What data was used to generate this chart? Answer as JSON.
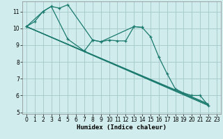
{
  "bg_color": "#d0ecec",
  "grid_color": "#aacccc",
  "line_color": "#1a7a6e",
  "xlabel": "Humidex (Indice chaleur)",
  "xlim": [
    -0.5,
    23.5
  ],
  "ylim": [
    4.9,
    11.6
  ],
  "yticks": [
    5,
    6,
    7,
    8,
    9,
    10,
    11
  ],
  "xticks": [
    0,
    1,
    2,
    3,
    4,
    5,
    6,
    7,
    8,
    9,
    10,
    11,
    12,
    13,
    14,
    15,
    16,
    17,
    18,
    19,
    20,
    21,
    22,
    23
  ],
  "curve_wiggly": {
    "x": [
      0,
      1,
      2,
      3,
      5,
      7,
      8,
      9,
      10,
      11,
      12,
      13,
      14,
      15,
      16,
      17,
      18,
      19,
      20,
      21,
      22
    ],
    "y": [
      10.1,
      10.4,
      11.0,
      11.3,
      9.35,
      8.65,
      9.3,
      9.2,
      9.3,
      9.25,
      9.25,
      10.1,
      10.05,
      9.5,
      8.3,
      7.3,
      6.4,
      6.15,
      6.0,
      6.0,
      5.4
    ]
  },
  "curve_peak": {
    "x": [
      0,
      2,
      3,
      4,
      5,
      8,
      9,
      13,
      14
    ],
    "y": [
      10.1,
      11.0,
      11.3,
      11.2,
      11.4,
      9.3,
      9.2,
      10.1,
      10.05
    ]
  },
  "line1": {
    "x": [
      0,
      22
    ],
    "y": [
      10.1,
      5.5
    ]
  },
  "line2": {
    "x": [
      0,
      22
    ],
    "y": [
      10.1,
      5.45
    ]
  },
  "line3": {
    "x": [
      0,
      22
    ],
    "y": [
      10.1,
      5.4
    ]
  }
}
